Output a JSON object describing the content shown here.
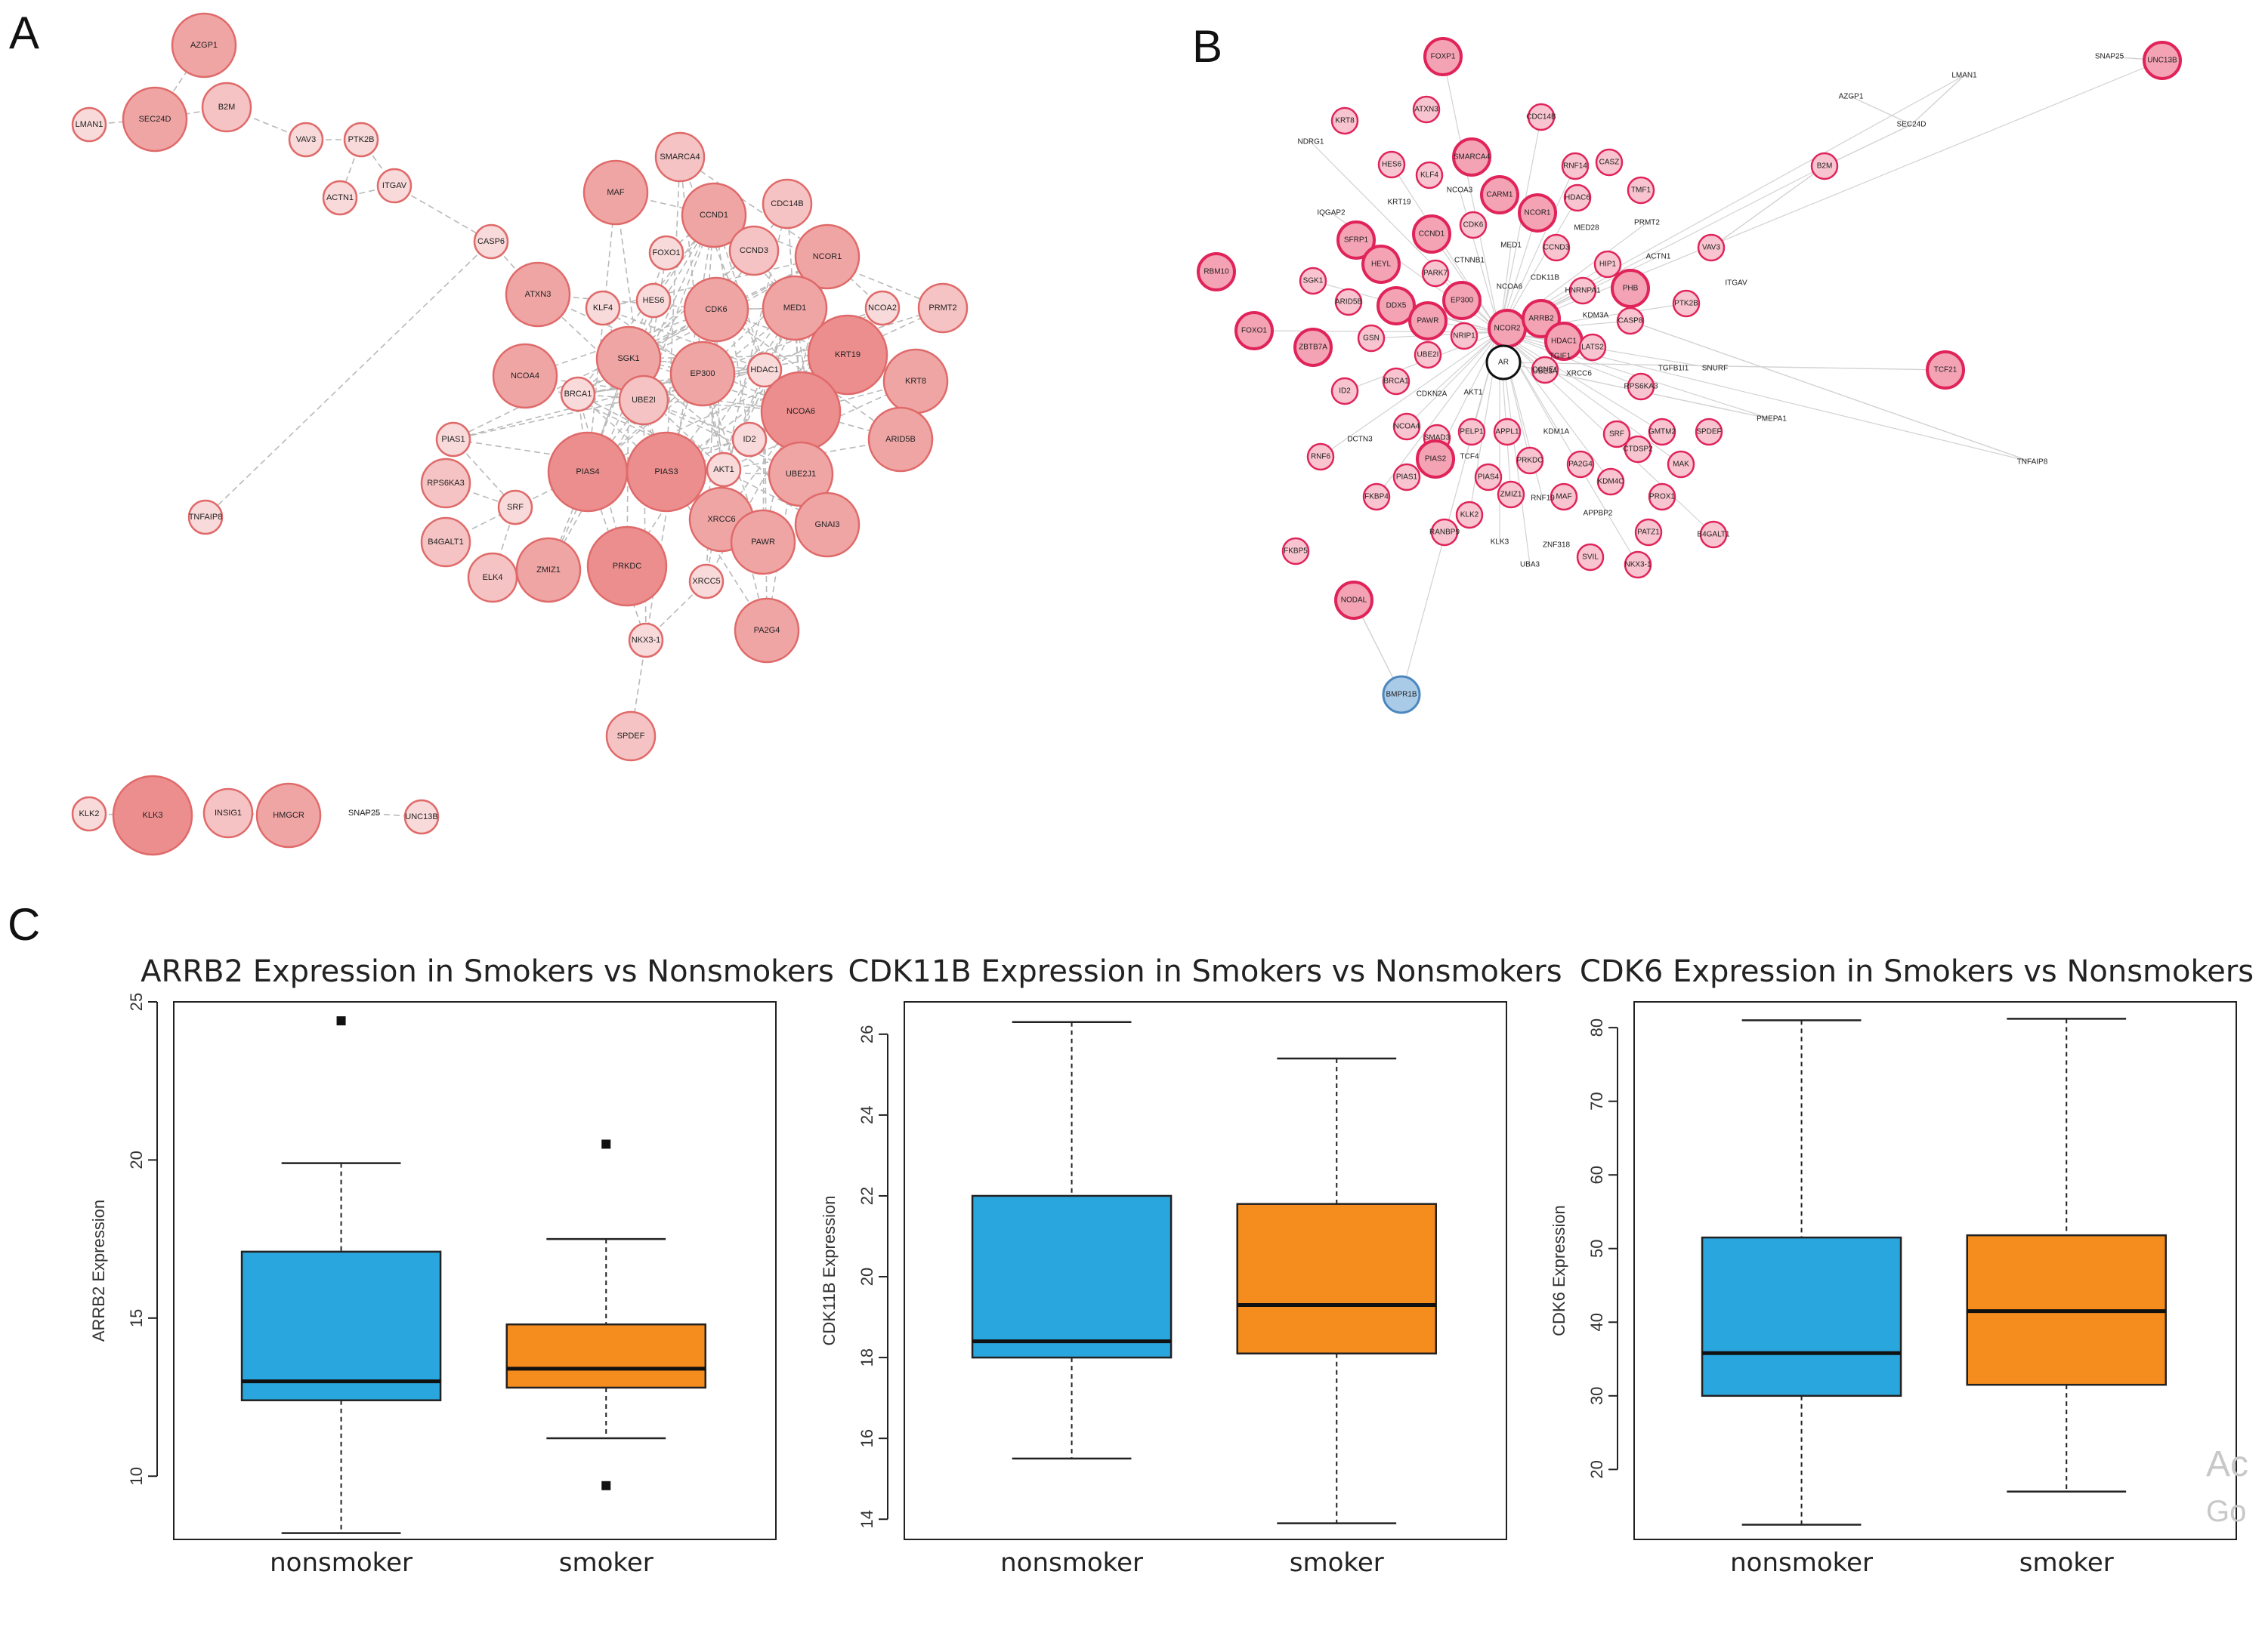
{
  "panels": {
    "a": "A",
    "b": "B",
    "c": "C"
  },
  "watermark": {
    "line1": "Ac",
    "line2": "Go"
  },
  "network_a": {
    "nodes": [
      {
        "label": "AZGP1",
        "size": "l"
      },
      {
        "label": "SEC24D",
        "size": "l"
      },
      {
        "label": "B2M",
        "size": "m"
      },
      {
        "label": "LMAN1",
        "size": "s"
      },
      {
        "label": "VAV3",
        "size": "s"
      },
      {
        "label": "PTK2B",
        "size": "s"
      },
      {
        "label": "ACTN1",
        "size": "s"
      },
      {
        "label": "ITGAV",
        "size": "s"
      },
      {
        "label": "CASP6",
        "size": "s"
      },
      {
        "label": "TNFAIP8",
        "size": "s"
      },
      {
        "label": "SMARCA4",
        "size": "m"
      },
      {
        "label": "MAF",
        "size": "l"
      },
      {
        "label": "CCND1",
        "size": "l"
      },
      {
        "label": "CDC14B",
        "size": "m"
      },
      {
        "label": "NCOR1",
        "size": "l"
      },
      {
        "label": "FOXO1",
        "size": "s"
      },
      {
        "label": "CCND3",
        "size": "m"
      },
      {
        "label": "ATXN3",
        "size": "l"
      },
      {
        "label": "KLF4",
        "size": "s"
      },
      {
        "label": "HES6",
        "size": "s"
      },
      {
        "label": "CDK6",
        "size": "l"
      },
      {
        "label": "MED1",
        "size": "l"
      },
      {
        "label": "NCOA2",
        "size": "s"
      },
      {
        "label": "PRMT2",
        "size": "m"
      },
      {
        "label": "KRT19",
        "size": "xl"
      },
      {
        "label": "NCOA4",
        "size": "l"
      },
      {
        "label": "SGK1",
        "size": "l"
      },
      {
        "label": "EP300",
        "size": "l"
      },
      {
        "label": "HDAC1",
        "size": "s"
      },
      {
        "label": "KRT8",
        "size": "l"
      },
      {
        "label": "BRCA1",
        "size": "s"
      },
      {
        "label": "UBE2I",
        "size": "m"
      },
      {
        "label": "NCOA6",
        "size": "xl"
      },
      {
        "label": "ARID5B",
        "size": "l"
      },
      {
        "label": "PIAS1",
        "size": "s"
      },
      {
        "label": "ID2",
        "size": "s"
      },
      {
        "label": "RPS6KA3",
        "size": "m"
      },
      {
        "label": "PIAS4",
        "size": "xl"
      },
      {
        "label": "PIAS3",
        "size": "xl"
      },
      {
        "label": "AKT1",
        "size": "s"
      },
      {
        "label": "UBE2J1",
        "size": "l"
      },
      {
        "label": "SRF",
        "size": "s"
      },
      {
        "label": "GNAI3",
        "size": "l"
      },
      {
        "label": "B4GALT1",
        "size": "m"
      },
      {
        "label": "XRCC6",
        "size": "l"
      },
      {
        "label": "PAWR",
        "size": "l"
      },
      {
        "label": "ELK4",
        "size": "m"
      },
      {
        "label": "ZMIZ1",
        "size": "l"
      },
      {
        "label": "PRKDC",
        "size": "xl"
      },
      {
        "label": "XRCC5",
        "size": "s"
      },
      {
        "label": "PA2G4",
        "size": "l"
      },
      {
        "label": "NKX3-1",
        "size": "s"
      },
      {
        "label": "SPDEF",
        "size": "m"
      },
      {
        "label": "KLK2",
        "size": "s"
      },
      {
        "label": "KLK3",
        "size": "xl"
      },
      {
        "label": "INSIG1",
        "size": "m"
      },
      {
        "label": "HMGCR",
        "size": "l"
      },
      {
        "label": "SNAP25",
        "size": "none"
      },
      {
        "label": "UNC13B",
        "size": "s"
      }
    ]
  },
  "network_b": {
    "nodes": [
      "FOXP1",
      "ATXN3",
      "CDC14B",
      "KRT8",
      "NDRG1",
      "SMARCA4",
      "HES6",
      "KLF4",
      "RNF14",
      "CASZ",
      "IQGAP2",
      "KRT19",
      "NCOA3",
      "CARM1",
      "HDAC6",
      "TMF1",
      "NCOR1",
      "MED28",
      "PRMT2",
      "SFRP1",
      "CCND1",
      "CDK6",
      "MED1",
      "CCND3",
      "HIP1",
      "RBM10",
      "SGK1",
      "HEYL",
      "PARK7",
      "CTNNB1",
      "NCOA6",
      "CDK11B",
      "HNRNPA1",
      "PHB",
      "FOXO1",
      "ARID5B",
      "DDX5",
      "EP300",
      "PAWR",
      "NRIP1",
      "NCOR2",
      "ARRB2",
      "HDAC1",
      "KDM3A",
      "CASP8",
      "ZBTB7A",
      "GSN",
      "UBE2I",
      "AR",
      "CCNE1",
      "LATS2",
      "TGIF1",
      "ID2",
      "BRCA1",
      "CDKN2A",
      "AKT1",
      "UBE3A",
      "XRCC6",
      "RPS6KA3",
      "TGFB1I1",
      "SNURF",
      "TCF21",
      "RNF6",
      "DCTN3",
      "NCOA4",
      "SMAD3",
      "PELP1",
      "APPL1",
      "KDM1A",
      "SRF",
      "GMTM2",
      "SPDEF",
      "PMEPA1",
      "PIAS1",
      "PIAS2",
      "TCF4",
      "PRKDC",
      "CTDSP2",
      "MAK",
      "PIAS4",
      "ZMIZ1",
      "PA2G4",
      "KDM4C",
      "PROX1",
      "FKBP4",
      "MAF",
      "TNFAIP8",
      "RANBP9",
      "KLK2",
      "APPBP2",
      "RNF19",
      "PATZ1",
      "B4GALT1",
      "FKBP5",
      "KLK3",
      "ZNF318",
      "UBA3",
      "SVIL",
      "NKX3-1",
      "NODAL",
      "BMPR1B",
      "AZGP1",
      "LMAN1",
      "SEC24D",
      "B2M",
      "VAV3",
      "ACTN1",
      "ITGAV",
      "PTK2B",
      "SNAP25",
      "UNC13B"
    ]
  },
  "chart_data": [
    {
      "type": "boxplot",
      "title": "ARRB2 Expression in Smokers vs Nonsmokers",
      "xlabel": "",
      "ylabel": "ARRB2 Expression",
      "ylim": [
        8,
        25
      ],
      "yticks": [
        10,
        15,
        20,
        25
      ],
      "categories": [
        "nonsmoker",
        "smoker"
      ],
      "colors": [
        "#2aa6de",
        "#f48c1e"
      ],
      "boxes": [
        {
          "whisker_low": 8.2,
          "q1": 12.4,
          "median": 13.0,
          "q3": 17.1,
          "whisker_high": 19.9,
          "outliers": [
            24.4
          ]
        },
        {
          "whisker_low": 11.2,
          "q1": 12.8,
          "median": 13.4,
          "q3": 14.8,
          "whisker_high": 17.5,
          "outliers": [
            20.5,
            9.7
          ]
        }
      ]
    },
    {
      "type": "boxplot",
      "title": "CDK11B Expression in Smokers vs Nonsmokers",
      "xlabel": "",
      "ylabel": "CDK11B Expression",
      "ylim": [
        13.5,
        26.8
      ],
      "yticks": [
        14,
        16,
        18,
        20,
        22,
        24,
        26
      ],
      "categories": [
        "nonsmoker",
        "smoker"
      ],
      "colors": [
        "#2aa6de",
        "#f48c1e"
      ],
      "boxes": [
        {
          "whisker_low": 15.5,
          "q1": 18.0,
          "median": 18.4,
          "q3": 22.0,
          "whisker_high": 26.3,
          "outliers": []
        },
        {
          "whisker_low": 13.9,
          "q1": 18.1,
          "median": 19.3,
          "q3": 21.8,
          "whisker_high": 25.4,
          "outliers": []
        }
      ]
    },
    {
      "type": "boxplot",
      "title": "CDK6 Expression in Smokers vs Nonsmokers",
      "xlabel": "",
      "ylabel": "CDK6 Expression",
      "ylim": [
        10.5,
        83.5
      ],
      "yticks": [
        20,
        30,
        40,
        50,
        60,
        70,
        80
      ],
      "categories": [
        "nonsmoker",
        "smoker"
      ],
      "colors": [
        "#2aa6de",
        "#f48c1e"
      ],
      "boxes": [
        {
          "whisker_low": 12.5,
          "q1": 30.0,
          "median": 35.8,
          "q3": 51.5,
          "whisker_high": 81.0,
          "outliers": []
        },
        {
          "whisker_low": 17.0,
          "q1": 31.5,
          "median": 41.5,
          "q3": 51.8,
          "whisker_high": 81.2,
          "outliers": []
        }
      ]
    }
  ]
}
